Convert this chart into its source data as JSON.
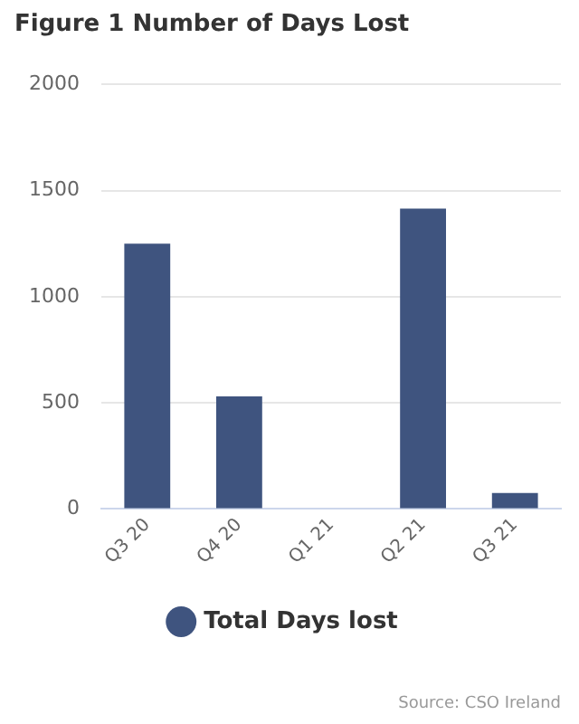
{
  "chart_data": {
    "type": "bar",
    "title": "Figure 1 Number of Days Lost",
    "categories": [
      "Q3 20",
      "Q4 20",
      "Q1 21",
      "Q2 21",
      "Q3 21"
    ],
    "series": [
      {
        "name": "Total Days lost",
        "color": "#3f547f",
        "values": [
          1250,
          530,
          0,
          1415,
          75
        ]
      }
    ],
    "ylim": [
      0,
      2000
    ],
    "yticks": [
      0,
      500,
      1000,
      1500,
      2000
    ],
    "grid": "y",
    "legend": "bottom",
    "annotations": [
      "Source: CSO Ireland"
    ]
  }
}
